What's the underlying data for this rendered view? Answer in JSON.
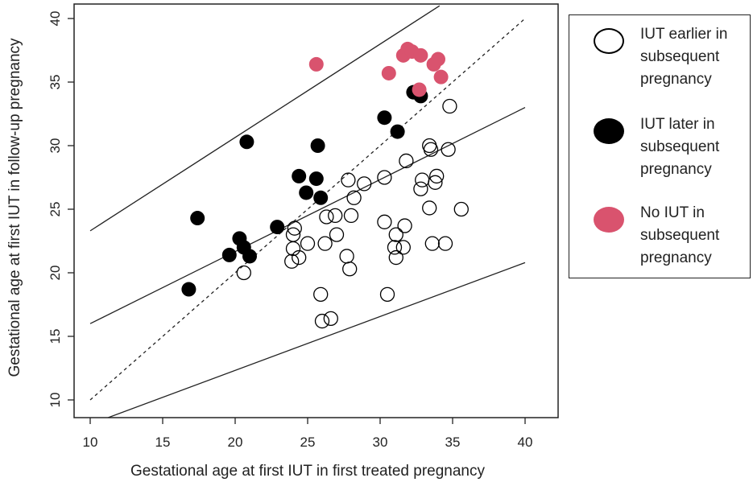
{
  "chart_data": {
    "type": "scatter",
    "xlabel": "Gestational age at first IUT in first treated pregnancy",
    "ylabel": "Gestational age at first IUT in follow-up pregnancy",
    "xlim": [
      10,
      40
    ],
    "ylim": [
      9,
      40
    ],
    "xticks": [
      "10",
      "15",
      "20",
      "25",
      "30",
      "35",
      "40"
    ],
    "yticks": [
      "10",
      "15",
      "20",
      "25",
      "30",
      "35",
      "40"
    ],
    "grid": false,
    "legend_position": "right",
    "reference_lines": [
      {
        "style": "dotted",
        "x": [
          10,
          40
        ],
        "y": [
          10,
          40
        ]
      },
      {
        "style": "solid",
        "x": [
          10,
          40
        ],
        "y": [
          16,
          33
        ]
      },
      {
        "style": "solid",
        "x": [
          10,
          34.1
        ],
        "y": [
          23.3,
          41
        ]
      },
      {
        "style": "solid",
        "x": [
          9.8,
          40
        ],
        "y": [
          8,
          20.8
        ]
      }
    ],
    "series": [
      {
        "name": "IUT earlier in subsequent pregnancy",
        "marker": "open-circle",
        "color": "#000000",
        "points": [
          [
            20.6,
            20.0
          ],
          [
            23.9,
            20.9
          ],
          [
            24.0,
            21.9
          ],
          [
            24.1,
            23.5
          ],
          [
            24.4,
            21.2
          ],
          [
            24.0,
            23.0
          ],
          [
            25.0,
            22.3
          ],
          [
            25.9,
            18.3
          ],
          [
            26.0,
            16.2
          ],
          [
            26.6,
            16.4
          ],
          [
            26.2,
            22.3
          ],
          [
            26.3,
            24.4
          ],
          [
            26.9,
            24.5
          ],
          [
            27.0,
            23.0
          ],
          [
            27.7,
            21.3
          ],
          [
            27.9,
            20.3
          ],
          [
            27.8,
            27.3
          ],
          [
            28.0,
            24.5
          ],
          [
            28.2,
            25.9
          ],
          [
            28.9,
            27.0
          ],
          [
            30.3,
            27.5
          ],
          [
            30.3,
            24.0
          ],
          [
            30.5,
            18.3
          ],
          [
            31.0,
            22.0
          ],
          [
            31.1,
            23.0
          ],
          [
            31.1,
            21.2
          ],
          [
            31.6,
            22.0
          ],
          [
            31.7,
            23.7
          ],
          [
            31.8,
            28.8
          ],
          [
            32.8,
            26.6
          ],
          [
            32.9,
            27.3
          ],
          [
            33.4,
            30.0
          ],
          [
            33.5,
            29.7
          ],
          [
            33.4,
            25.1
          ],
          [
            33.6,
            22.3
          ],
          [
            33.8,
            27.1
          ],
          [
            33.9,
            27.6
          ],
          [
            34.5,
            22.3
          ],
          [
            34.7,
            29.7
          ],
          [
            34.8,
            33.1
          ],
          [
            35.6,
            25.0
          ]
        ]
      },
      {
        "name": "IUT later in subsequent pregnancy",
        "marker": "filled-circle",
        "color": "#000000",
        "points": [
          [
            16.8,
            18.7
          ],
          [
            17.4,
            24.3
          ],
          [
            19.6,
            21.4
          ],
          [
            20.3,
            22.7
          ],
          [
            20.6,
            22.0
          ],
          [
            21.0,
            21.3
          ],
          [
            20.8,
            30.3
          ],
          [
            22.9,
            23.6
          ],
          [
            24.4,
            27.6
          ],
          [
            24.9,
            26.3
          ],
          [
            25.6,
            27.4
          ],
          [
            25.9,
            25.9
          ],
          [
            25.7,
            30.0
          ],
          [
            30.3,
            32.2
          ],
          [
            31.2,
            31.1
          ],
          [
            32.3,
            34.2
          ],
          [
            32.8,
            33.9
          ]
        ]
      },
      {
        "name": "No IUT  in subsequent pregnancy",
        "marker": "filled-circle",
        "color": "#d9536e",
        "points": [
          [
            25.6,
            36.4
          ],
          [
            30.6,
            35.7
          ],
          [
            31.6,
            37.1
          ],
          [
            31.9,
            37.6
          ],
          [
            32.2,
            37.4
          ],
          [
            32.8,
            37.1
          ],
          [
            32.7,
            34.4
          ],
          [
            33.7,
            36.4
          ],
          [
            34.0,
            36.8
          ],
          [
            34.2,
            35.4
          ]
        ]
      }
    ]
  },
  "legend": {
    "items": [
      {
        "label": "IUT earlier in\nsubsequent\npregnancy",
        "style": "open",
        "color": "#000000"
      },
      {
        "label": "IUT later in\nsubsequent\npregnancy",
        "style": "filled",
        "color": "#000000"
      },
      {
        "label": "No IUT  in\nsubsequent\npregnancy",
        "style": "filled",
        "color": "#d9536e"
      }
    ]
  }
}
